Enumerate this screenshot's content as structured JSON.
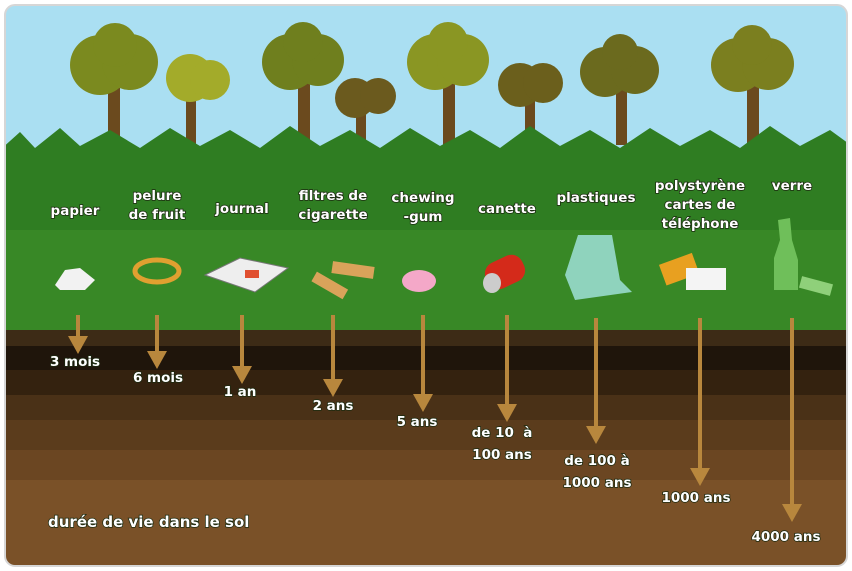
{
  "items": [
    {
      "label": [
        "papier"
      ],
      "duration": [
        "3 mois"
      ]
    },
    {
      "label": [
        "pelure",
        "de fruit"
      ],
      "duration": [
        "6 mois"
      ]
    },
    {
      "label": [
        "journal"
      ],
      "duration": [
        "1 an"
      ]
    },
    {
      "label": [
        "filtres de",
        "cigarette"
      ],
      "duration": [
        "2 ans"
      ]
    },
    {
      "label": [
        "chewing",
        "-gum"
      ],
      "duration": [
        "5 ans"
      ]
    },
    {
      "label": [
        "canette"
      ],
      "duration": [
        "de 10  à",
        "100 ans"
      ]
    },
    {
      "label": [
        "plastiques"
      ],
      "duration": [
        "de 100 à",
        "1000 ans"
      ]
    },
    {
      "label": [
        "polystyrène",
        "cartes de",
        "téléphone"
      ],
      "duration": [
        "1000 ans"
      ]
    },
    {
      "label": [
        "verre"
      ],
      "duration": [
        "4000 ans"
      ]
    }
  ],
  "footer": "durée de vie dans le sol"
}
